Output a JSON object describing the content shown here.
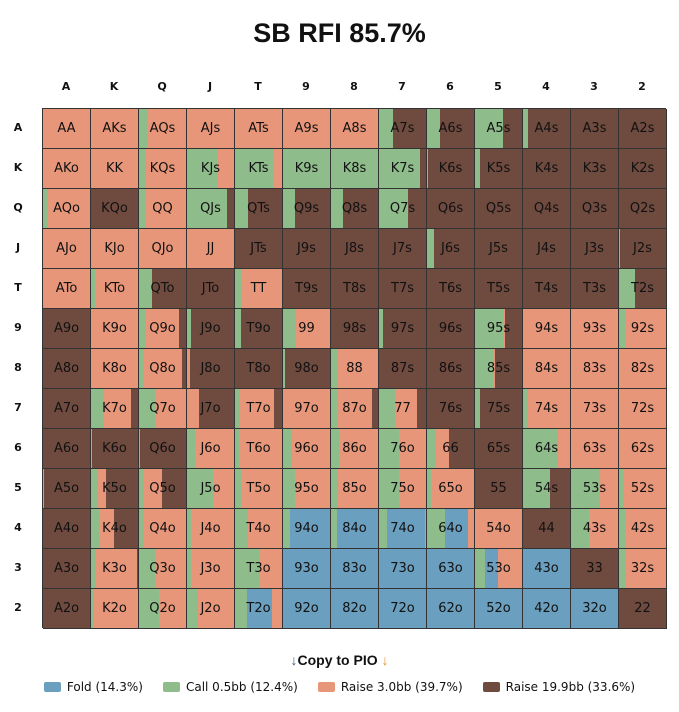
{
  "title": "SB RFI 85.7%",
  "colors": {
    "call": "#8fbc8b",
    "fold": "#6a9fbf",
    "raise_small": "#e8967a",
    "raise_big": "#6f4a3f"
  },
  "segment_order": [
    "call",
    "fold",
    "raise_small",
    "raise_big"
  ],
  "ranks": [
    "A",
    "K",
    "Q",
    "J",
    "T",
    "9",
    "8",
    "7",
    "6",
    "5",
    "4",
    "3",
    "2"
  ],
  "copy_label": "Copy to PIO",
  "legend": [
    {
      "key": "fold",
      "label": "Fold (14.3%)"
    },
    {
      "key": "call",
      "label": "Call 0.5bb (12.4%)"
    },
    {
      "key": "raise_small",
      "label": "Raise 3.0bb (39.7%)"
    },
    {
      "key": "raise_big",
      "label": "Raise 19.9bb (33.6%)"
    }
  ],
  "grid": [
    [
      [
        "AA",
        0,
        0,
        100,
        0
      ],
      [
        "AKs",
        0,
        0,
        100,
        0
      ],
      [
        "AQs",
        18,
        0,
        82,
        0
      ],
      [
        "AJs",
        0,
        0,
        100,
        0
      ],
      [
        "ATs",
        0,
        0,
        100,
        0
      ],
      [
        "A9s",
        2,
        0,
        98,
        0
      ],
      [
        "A8s",
        0,
        0,
        100,
        0
      ],
      [
        "A7s",
        30,
        0,
        0,
        70
      ],
      [
        "A6s",
        27,
        0,
        0,
        73
      ],
      [
        "A5s",
        60,
        0,
        0,
        40
      ],
      [
        "A4s",
        10,
        0,
        0,
        90
      ],
      [
        "A3s",
        0,
        0,
        0,
        100
      ],
      [
        "A2s",
        0,
        0,
        0,
        100
      ]
    ],
    [
      [
        "AKo",
        0,
        0,
        100,
        0
      ],
      [
        "KK",
        3,
        0,
        97,
        0
      ],
      [
        "KQs",
        15,
        0,
        85,
        0
      ],
      [
        "KJs",
        67,
        0,
        33,
        0
      ],
      [
        "KTs",
        84,
        0,
        16,
        0
      ],
      [
        "K9s",
        100,
        0,
        0,
        0
      ],
      [
        "K8s",
        100,
        0,
        0,
        0
      ],
      [
        "K7s",
        88,
        0,
        0,
        12
      ],
      [
        "K6s",
        2,
        0,
        0,
        98
      ],
      [
        "K5s",
        10,
        0,
        0,
        90
      ],
      [
        "K4s",
        0,
        0,
        0,
        100
      ],
      [
        "K3s",
        0,
        0,
        0,
        100
      ],
      [
        "K2s",
        0,
        0,
        0,
        100
      ]
    ],
    [
      [
        "AQo",
        10,
        0,
        90,
        0
      ],
      [
        "KQo",
        0,
        0,
        0,
        100
      ],
      [
        "QQ",
        15,
        0,
        85,
        0
      ],
      [
        "QJs",
        85,
        0,
        0,
        15
      ],
      [
        "QTs",
        28,
        0,
        0,
        72
      ],
      [
        "Q9s",
        25,
        0,
        0,
        75
      ],
      [
        "Q8s",
        25,
        0,
        0,
        75
      ],
      [
        "Q7s",
        62,
        0,
        0,
        38
      ],
      [
        "Q6s",
        0,
        0,
        0,
        100
      ],
      [
        "Q5s",
        0,
        0,
        0,
        100
      ],
      [
        "Q4s",
        0,
        0,
        0,
        100
      ],
      [
        "Q3s",
        0,
        0,
        0,
        100
      ],
      [
        "Q2s",
        0,
        0,
        0,
        100
      ]
    ],
    [
      [
        "AJo",
        2,
        0,
        98,
        0
      ],
      [
        "KJo",
        3,
        0,
        97,
        0
      ],
      [
        "QJo",
        0,
        0,
        100,
        0
      ],
      [
        "JJ",
        0,
        0,
        100,
        0
      ],
      [
        "JTs",
        0,
        0,
        0,
        100
      ],
      [
        "J9s",
        0,
        0,
        0,
        100
      ],
      [
        "J8s",
        0,
        0,
        0,
        100
      ],
      [
        "J7s",
        0,
        0,
        0,
        100
      ],
      [
        "J6s",
        15,
        0,
        0,
        85
      ],
      [
        "J5s",
        0,
        0,
        0,
        100
      ],
      [
        "J4s",
        0,
        0,
        0,
        100
      ],
      [
        "J3s",
        0,
        0,
        0,
        100
      ],
      [
        "J2s",
        2,
        0,
        0,
        98
      ]
    ],
    [
      [
        "ATo",
        2,
        0,
        98,
        0
      ],
      [
        "KTo",
        8,
        0,
        92,
        0
      ],
      [
        "QTo",
        28,
        0,
        0,
        72
      ],
      [
        "JTo",
        0,
        0,
        0,
        100
      ],
      [
        "TT",
        15,
        0,
        85,
        0
      ],
      [
        "T9s",
        0,
        0,
        0,
        100
      ],
      [
        "T8s",
        0,
        0,
        0,
        100
      ],
      [
        "T7s",
        0,
        0,
        0,
        100
      ],
      [
        "T6s",
        0,
        0,
        0,
        100
      ],
      [
        "T5s",
        0,
        0,
        0,
        100
      ],
      [
        "T4s",
        0,
        0,
        0,
        100
      ],
      [
        "T3s",
        0,
        0,
        0,
        100
      ],
      [
        "T2s",
        35,
        0,
        0,
        65
      ]
    ],
    [
      [
        "A9o",
        0,
        0,
        0,
        100
      ],
      [
        "K9o",
        0,
        0,
        100,
        0
      ],
      [
        "Q9o",
        15,
        0,
        70,
        15
      ],
      [
        "J9o",
        8,
        0,
        0,
        92
      ],
      [
        "T9o",
        12,
        0,
        0,
        88
      ],
      [
        "99",
        28,
        0,
        72,
        0
      ],
      [
        "98s",
        0,
        0,
        0,
        100
      ],
      [
        "97s",
        8,
        0,
        0,
        92
      ],
      [
        "96s",
        0,
        0,
        0,
        100
      ],
      [
        "95s",
        62,
        0,
        2,
        36
      ],
      [
        "94s",
        0,
        0,
        100,
        0
      ],
      [
        "93s",
        2,
        0,
        98,
        0
      ],
      [
        "92s",
        12,
        0,
        88,
        0
      ]
    ],
    [
      [
        "A8o",
        0,
        0,
        0,
        100
      ],
      [
        "K8o",
        0,
        0,
        100,
        0
      ],
      [
        "Q8o",
        10,
        0,
        82,
        8
      ],
      [
        "J8o",
        2,
        0,
        5,
        93
      ],
      [
        "T8o",
        0,
        0,
        0,
        100
      ],
      [
        "98o",
        5,
        0,
        0,
        95
      ],
      [
        "88",
        14,
        0,
        86,
        0
      ],
      [
        "87s",
        0,
        0,
        0,
        100
      ],
      [
        "86s",
        0,
        0,
        0,
        100
      ],
      [
        "85s",
        40,
        0,
        2,
        58
      ],
      [
        "84s",
        0,
        0,
        100,
        0
      ],
      [
        "83s",
        0,
        0,
        100,
        0
      ],
      [
        "82s",
        0,
        0,
        100,
        0
      ]
    ],
    [
      [
        "A7o",
        0,
        0,
        0,
        100
      ],
      [
        "K7o",
        28,
        0,
        58,
        14
      ],
      [
        "Q7o",
        33,
        0,
        67,
        0
      ],
      [
        "J7o",
        2,
        0,
        23,
        75
      ],
      [
        "T7o",
        10,
        0,
        72,
        18
      ],
      [
        "97o",
        0,
        0,
        100,
        0
      ],
      [
        "87o",
        12,
        0,
        75,
        13
      ],
      [
        "77",
        33,
        0,
        48,
        19
      ],
      [
        "76s",
        0,
        0,
        0,
        100
      ],
      [
        "75s",
        10,
        0,
        0,
        90
      ],
      [
        "74s",
        10,
        0,
        90,
        0
      ],
      [
        "73s",
        0,
        0,
        100,
        0
      ],
      [
        "72s",
        0,
        0,
        100,
        0
      ]
    ],
    [
      [
        "A6o",
        0,
        0,
        0,
        100
      ],
      [
        "K6o",
        3,
        0,
        0,
        97
      ],
      [
        "Q6o",
        2,
        0,
        0,
        98
      ],
      [
        "J6o",
        18,
        0,
        82,
        0
      ],
      [
        "T6o",
        8,
        0,
        92,
        0
      ],
      [
        "96o",
        20,
        0,
        80,
        0
      ],
      [
        "86o",
        18,
        0,
        82,
        0
      ],
      [
        "76o",
        42,
        0,
        58,
        0
      ],
      [
        "66",
        20,
        0,
        26,
        54
      ],
      [
        "65s",
        0,
        0,
        0,
        100
      ],
      [
        "64s",
        75,
        0,
        25,
        0
      ],
      [
        "63s",
        0,
        0,
        100,
        0
      ],
      [
        "62s",
        3,
        0,
        97,
        0
      ]
    ],
    [
      [
        "A5o",
        0,
        0,
        2,
        98
      ],
      [
        "K5o",
        15,
        0,
        16,
        69
      ],
      [
        "Q5o",
        10,
        0,
        40,
        50
      ],
      [
        "J5o",
        55,
        0,
        45,
        0
      ],
      [
        "T5o",
        12,
        0,
        88,
        0
      ],
      [
        "95o",
        25,
        0,
        75,
        0
      ],
      [
        "85o",
        15,
        0,
        85,
        0
      ],
      [
        "75o",
        42,
        0,
        58,
        0
      ],
      [
        "65o",
        8,
        0,
        92,
        0
      ],
      [
        "55",
        0,
        0,
        0,
        100
      ],
      [
        "54s",
        58,
        0,
        0,
        42
      ],
      [
        "53s",
        62,
        0,
        38,
        0
      ],
      [
        "52s",
        10,
        0,
        90,
        0
      ]
    ],
    [
      [
        "A4o",
        0,
        0,
        0,
        100
      ],
      [
        "K4o",
        17,
        0,
        33,
        50
      ],
      [
        "Q4o",
        10,
        0,
        90,
        0
      ],
      [
        "J4o",
        8,
        0,
        92,
        0
      ],
      [
        "T4o",
        28,
        0,
        72,
        0
      ],
      [
        "94o",
        15,
        85,
        0,
        0
      ],
      [
        "84o",
        12,
        88,
        0,
        0
      ],
      [
        "74o",
        17,
        80,
        3,
        0
      ],
      [
        "64o",
        38,
        50,
        12,
        0
      ],
      [
        "54o",
        0,
        0,
        100,
        0
      ],
      [
        "44",
        0,
        0,
        0,
        100
      ],
      [
        "43s",
        38,
        0,
        62,
        0
      ],
      [
        "42s",
        12,
        0,
        88,
        0
      ]
    ],
    [
      [
        "A3o",
        0,
        0,
        0,
        100
      ],
      [
        "K3o",
        10,
        0,
        87,
        3
      ],
      [
        "Q3o",
        33,
        0,
        67,
        0
      ],
      [
        "J3o",
        8,
        0,
        92,
        0
      ],
      [
        "T3o",
        50,
        0,
        50,
        0
      ],
      [
        "93o",
        0,
        100,
        0,
        0
      ],
      [
        "83o",
        0,
        100,
        0,
        0
      ],
      [
        "73o",
        0,
        100,
        0,
        0
      ],
      [
        "63o",
        0,
        100,
        0,
        0
      ],
      [
        "53o",
        22,
        27,
        51,
        0
      ],
      [
        "43o",
        0,
        100,
        0,
        0
      ],
      [
        "33",
        0,
        0,
        0,
        100
      ],
      [
        "32s",
        15,
        0,
        85,
        0
      ]
    ],
    [
      [
        "A2o",
        0,
        0,
        0,
        100
      ],
      [
        "K2o",
        7,
        0,
        93,
        0
      ],
      [
        "Q2o",
        42,
        0,
        58,
        0
      ],
      [
        "J2o",
        23,
        0,
        77,
        0
      ],
      [
        "T2o",
        25,
        53,
        22,
        0
      ],
      [
        "92o",
        0,
        100,
        0,
        0
      ],
      [
        "82o",
        0,
        100,
        0,
        0
      ],
      [
        "72o",
        0,
        100,
        0,
        0
      ],
      [
        "62o",
        0,
        100,
        0,
        0
      ],
      [
        "52o",
        0,
        100,
        0,
        0
      ],
      [
        "42o",
        0,
        100,
        0,
        0
      ],
      [
        "32o",
        0,
        100,
        0,
        0
      ],
      [
        "22",
        0,
        0,
        0,
        100
      ]
    ]
  ]
}
